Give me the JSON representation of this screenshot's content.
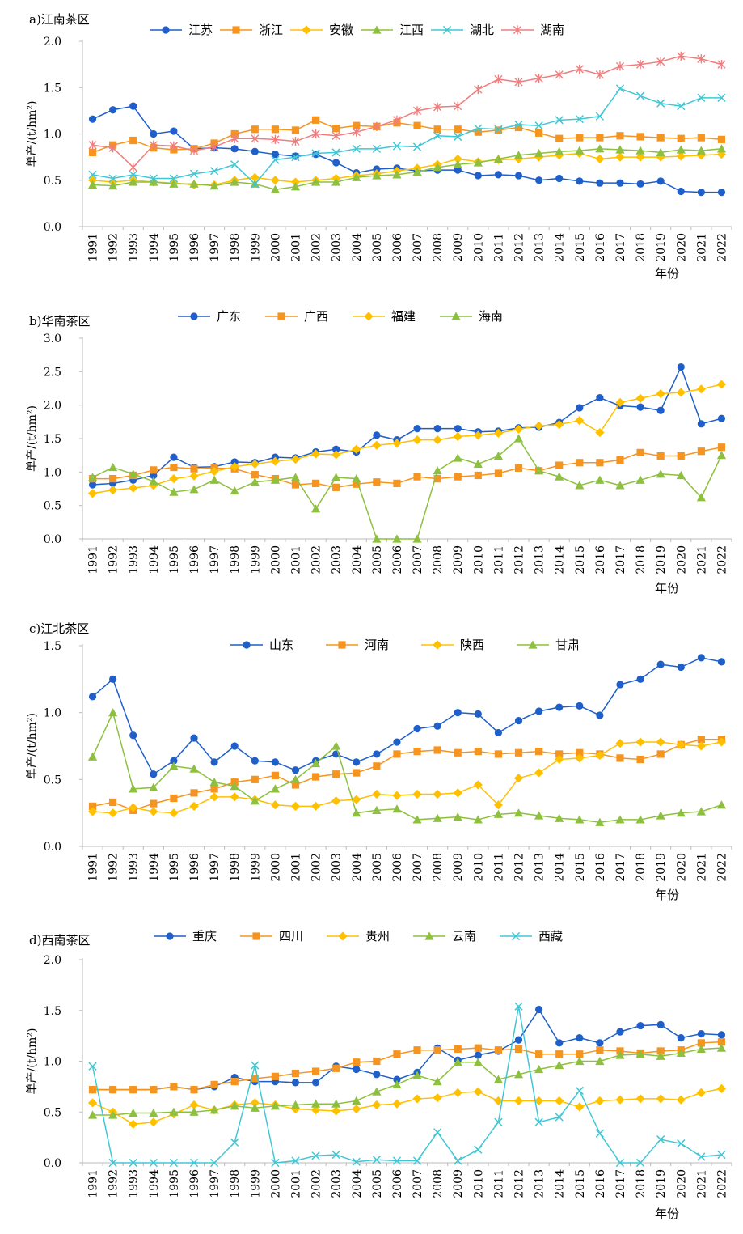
{
  "chart_data": [
    {
      "type": "line",
      "title": "a)江南茶区",
      "ylabel": "单产/(t/hm²)",
      "xlabel": "年份",
      "ylim": [
        0,
        2.0
      ],
      "yticks": [
        "0.0",
        "0.5",
        "1.0",
        "1.5",
        "2.0"
      ],
      "legend_position": "top",
      "x": [
        "1991",
        "1992",
        "1993",
        "1994",
        "1995",
        "1996",
        "1997",
        "1998",
        "1999",
        "2000",
        "2001",
        "2002",
        "2003",
        "2004",
        "2005",
        "2006",
        "2007",
        "2008",
        "2009",
        "2010",
        "2011",
        "2012",
        "2013",
        "2014",
        "2015",
        "2016",
        "2017",
        "2018",
        "2019",
        "2020",
        "2021",
        "2022"
      ],
      "series": [
        {
          "name": "江苏",
          "color": "#1f5fc9",
          "marker": "circle",
          "values": [
            1.16,
            1.26,
            1.3,
            1.0,
            1.03,
            0.84,
            0.85,
            0.84,
            0.81,
            0.78,
            0.76,
            0.78,
            0.69,
            0.58,
            0.62,
            0.63,
            0.6,
            0.61,
            0.61,
            0.55,
            0.56,
            0.55,
            0.5,
            0.52,
            0.49,
            0.47,
            0.47,
            0.46,
            0.49,
            0.38,
            0.37,
            0.37
          ]
        },
        {
          "name": "浙江",
          "color": "#f5951f",
          "marker": "square",
          "values": [
            0.8,
            0.88,
            0.93,
            0.85,
            0.83,
            0.84,
            0.9,
            1.0,
            1.05,
            1.05,
            1.04,
            1.15,
            1.06,
            1.09,
            1.08,
            1.12,
            1.09,
            1.05,
            1.05,
            1.02,
            1.04,
            1.07,
            1.01,
            0.95,
            0.96,
            0.96,
            0.98,
            0.97,
            0.96,
            0.95,
            0.96,
            0.94
          ]
        },
        {
          "name": "安徽",
          "color": "#ffc000",
          "marker": "diamond",
          "values": [
            0.5,
            0.48,
            0.5,
            0.48,
            0.47,
            0.45,
            0.45,
            0.5,
            0.53,
            0.5,
            0.48,
            0.5,
            0.52,
            0.55,
            0.57,
            0.6,
            0.63,
            0.67,
            0.73,
            0.7,
            0.72,
            0.73,
            0.75,
            0.77,
            0.79,
            0.73,
            0.75,
            0.75,
            0.75,
            0.76,
            0.77,
            0.78
          ]
        },
        {
          "name": "江西",
          "color": "#8dc03f",
          "marker": "triangle",
          "values": [
            0.45,
            0.44,
            0.48,
            0.48,
            0.46,
            0.46,
            0.44,
            0.48,
            0.46,
            0.4,
            0.43,
            0.48,
            0.48,
            0.53,
            0.55,
            0.56,
            0.59,
            0.64,
            0.67,
            0.69,
            0.73,
            0.77,
            0.79,
            0.81,
            0.82,
            0.84,
            0.83,
            0.82,
            0.8,
            0.83,
            0.82,
            0.84
          ]
        },
        {
          "name": "湖北",
          "color": "#41c7d4",
          "marker": "x",
          "values": [
            0.56,
            0.52,
            0.56,
            0.52,
            0.52,
            0.57,
            0.6,
            0.67,
            0.46,
            0.72,
            0.75,
            0.79,
            0.8,
            0.84,
            0.84,
            0.87,
            0.86,
            0.98,
            0.97,
            1.06,
            1.05,
            1.1,
            1.09,
            1.15,
            1.16,
            1.19,
            1.49,
            1.41,
            1.33,
            1.3,
            1.39,
            1.39
          ]
        },
        {
          "name": "湖南",
          "color": "#f07d7d",
          "marker": "star",
          "values": [
            0.88,
            0.85,
            0.64,
            0.88,
            0.87,
            0.82,
            0.86,
            0.95,
            0.95,
            0.94,
            0.92,
            1.0,
            0.98,
            1.02,
            1.08,
            1.15,
            1.25,
            1.29,
            1.3,
            1.48,
            1.59,
            1.56,
            1.6,
            1.64,
            1.7,
            1.64,
            1.73,
            1.75,
            1.78,
            1.84,
            1.81,
            1.75
          ]
        }
      ]
    },
    {
      "type": "line",
      "title": "b)华南茶区",
      "ylabel": "单产/(t/hm²)",
      "xlabel": "年份",
      "ylim": [
        0,
        3.0
      ],
      "yticks": [
        "0.0",
        "0.5",
        "1.0",
        "1.5",
        "2.0",
        "2.5",
        "3.0"
      ],
      "legend_position": "top",
      "x": [
        "1991",
        "1992",
        "1993",
        "1994",
        "1995",
        "1996",
        "1997",
        "1998",
        "1999",
        "2000",
        "2001",
        "2002",
        "2003",
        "2004",
        "2005",
        "2006",
        "2007",
        "2008",
        "2009",
        "2010",
        "2011",
        "2012",
        "2013",
        "2014",
        "2015",
        "2016",
        "2017",
        "2018",
        "2019",
        "2020",
        "2021",
        "2022"
      ],
      "series": [
        {
          "name": "广东",
          "color": "#1f5fc9",
          "marker": "circle",
          "values": [
            0.81,
            0.83,
            0.88,
            0.95,
            1.22,
            1.07,
            1.08,
            1.15,
            1.14,
            1.22,
            1.21,
            1.3,
            1.34,
            1.3,
            1.55,
            1.48,
            1.65,
            1.65,
            1.65,
            1.6,
            1.61,
            1.66,
            1.67,
            1.74,
            1.96,
            2.11,
            1.99,
            1.97,
            1.92,
            2.57,
            1.72,
            1.8
          ]
        },
        {
          "name": "广西",
          "color": "#f5951f",
          "marker": "square",
          "values": [
            0.9,
            0.9,
            0.95,
            1.03,
            1.07,
            1.05,
            1.06,
            1.05,
            0.96,
            0.9,
            0.81,
            0.83,
            0.77,
            0.82,
            0.85,
            0.83,
            0.93,
            0.9,
            0.93,
            0.95,
            0.98,
            1.06,
            1.02,
            1.1,
            1.14,
            1.14,
            1.18,
            1.29,
            1.24,
            1.24,
            1.31,
            1.37
          ]
        },
        {
          "name": "福建",
          "color": "#ffc000",
          "marker": "diamond",
          "values": [
            0.68,
            0.73,
            0.76,
            0.8,
            0.9,
            0.94,
            1.01,
            1.08,
            1.12,
            1.16,
            1.19,
            1.27,
            1.26,
            1.34,
            1.4,
            1.43,
            1.48,
            1.48,
            1.53,
            1.55,
            1.58,
            1.64,
            1.69,
            1.71,
            1.77,
            1.59,
            2.04,
            2.1,
            2.17,
            2.19,
            2.24,
            2.31
          ]
        },
        {
          "name": "海南",
          "color": "#8dc03f",
          "marker": "triangle",
          "values": [
            0.92,
            1.07,
            0.97,
            0.86,
            0.7,
            0.74,
            0.88,
            0.72,
            0.85,
            0.88,
            0.92,
            0.45,
            0.92,
            0.9,
            0.0,
            0.0,
            0.0,
            1.02,
            1.21,
            1.12,
            1.24,
            1.5,
            1.02,
            0.93,
            0.8,
            0.88,
            0.8,
            0.88,
            0.97,
            0.95,
            0.62,
            1.25
          ]
        }
      ]
    },
    {
      "type": "line",
      "title": "c)江北茶区",
      "ylabel": "单产/(t/hm²)",
      "xlabel": "年份",
      "ylim": [
        0,
        1.5
      ],
      "yticks": [
        "0.0",
        "0.5",
        "1.0",
        "1.5"
      ],
      "legend_position": "top",
      "x": [
        "1991",
        "1992",
        "1993",
        "1994",
        "1995",
        "1996",
        "1997",
        "1998",
        "1999",
        "2000",
        "2001",
        "2002",
        "2003",
        "2004",
        "2005",
        "2006",
        "2007",
        "2008",
        "2009",
        "2010",
        "2011",
        "2012",
        "2013",
        "2014",
        "2015",
        "2016",
        "2017",
        "2018",
        "2019",
        "2020",
        "2021",
        "2022"
      ],
      "series": [
        {
          "name": "山东",
          "color": "#1f5fc9",
          "marker": "circle",
          "values": [
            1.12,
            1.25,
            0.83,
            0.54,
            0.64,
            0.81,
            0.63,
            0.75,
            0.64,
            0.63,
            0.57,
            0.64,
            0.69,
            0.63,
            0.69,
            0.78,
            0.88,
            0.9,
            1.0,
            0.99,
            0.85,
            0.94,
            1.01,
            1.04,
            1.05,
            0.98,
            1.21,
            1.25,
            1.36,
            1.34,
            1.41,
            1.38
          ]
        },
        {
          "name": "河南",
          "color": "#f5951f",
          "marker": "square",
          "values": [
            0.3,
            0.33,
            0.27,
            0.32,
            0.36,
            0.4,
            0.43,
            0.48,
            0.5,
            0.53,
            0.46,
            0.52,
            0.54,
            0.55,
            0.6,
            0.69,
            0.71,
            0.72,
            0.7,
            0.71,
            0.69,
            0.7,
            0.71,
            0.69,
            0.7,
            0.69,
            0.66,
            0.65,
            0.69,
            0.76,
            0.8,
            0.8
          ]
        },
        {
          "name": "陕西",
          "color": "#ffc000",
          "marker": "diamond",
          "values": [
            0.26,
            0.25,
            0.29,
            0.26,
            0.25,
            0.3,
            0.37,
            0.37,
            0.35,
            0.31,
            0.3,
            0.3,
            0.34,
            0.35,
            0.39,
            0.38,
            0.39,
            0.39,
            0.4,
            0.46,
            0.31,
            0.51,
            0.55,
            0.65,
            0.66,
            0.68,
            0.77,
            0.78,
            0.78,
            0.76,
            0.75,
            0.78
          ]
        },
        {
          "name": "甘肃",
          "color": "#8dc03f",
          "marker": "triangle",
          "values": [
            0.67,
            1.0,
            0.43,
            0.44,
            0.6,
            0.58,
            0.48,
            0.45,
            0.34,
            0.43,
            0.5,
            0.62,
            0.75,
            0.25,
            0.27,
            0.28,
            0.2,
            0.21,
            0.22,
            0.2,
            0.24,
            0.25,
            0.23,
            0.21,
            0.2,
            0.18,
            0.2,
            0.2,
            0.23,
            0.25,
            0.26,
            0.31
          ]
        }
      ]
    },
    {
      "type": "line",
      "title": "d)西南茶区",
      "ylabel": "单产/(t/hm²)",
      "xlabel": "年份",
      "ylim": [
        0,
        2.0
      ],
      "yticks": [
        "0.0",
        "0.5",
        "1.0",
        "1.5",
        "2.0"
      ],
      "legend_position": "top",
      "x": [
        "1991",
        "1992",
        "1993",
        "1994",
        "1995",
        "1996",
        "1997",
        "1998",
        "1999",
        "2000",
        "2001",
        "2002",
        "2003",
        "2004",
        "2005",
        "2006",
        "2007",
        "2008",
        "2009",
        "2010",
        "2011",
        "2012",
        "2013",
        "2014",
        "2015",
        "2016",
        "2017",
        "2018",
        "2019",
        "2020",
        "2021",
        "2022"
      ],
      "series": [
        {
          "name": "重庆",
          "color": "#1f5fc9",
          "marker": "circle",
          "values": [
            0.72,
            0.72,
            0.72,
            0.72,
            0.75,
            0.72,
            0.75,
            0.84,
            0.8,
            0.8,
            0.79,
            0.79,
            0.95,
            0.92,
            0.87,
            0.82,
            0.89,
            1.13,
            1.01,
            1.06,
            1.1,
            1.21,
            1.51,
            1.18,
            1.23,
            1.18,
            1.29,
            1.35,
            1.36,
            1.23,
            1.27,
            1.26
          ]
        },
        {
          "name": "四川",
          "color": "#f5951f",
          "marker": "square",
          "values": [
            0.72,
            0.72,
            0.72,
            0.72,
            0.75,
            0.72,
            0.77,
            0.8,
            0.83,
            0.85,
            0.88,
            0.9,
            0.93,
            0.99,
            1.0,
            1.07,
            1.11,
            1.11,
            1.12,
            1.13,
            1.11,
            1.12,
            1.07,
            1.07,
            1.07,
            1.11,
            1.1,
            1.08,
            1.1,
            1.11,
            1.18,
            1.19
          ]
        },
        {
          "name": "贵州",
          "color": "#ffc000",
          "marker": "diamond",
          "values": [
            0.59,
            0.5,
            0.38,
            0.4,
            0.48,
            0.57,
            0.52,
            0.57,
            0.59,
            0.57,
            0.53,
            0.52,
            0.51,
            0.53,
            0.57,
            0.58,
            0.63,
            0.64,
            0.69,
            0.7,
            0.61,
            0.61,
            0.61,
            0.61,
            0.55,
            0.61,
            0.62,
            0.63,
            0.63,
            0.62,
            0.69,
            0.73
          ]
        },
        {
          "name": "云南",
          "color": "#8dc03f",
          "marker": "triangle",
          "values": [
            0.47,
            0.47,
            0.49,
            0.49,
            0.5,
            0.5,
            0.52,
            0.56,
            0.54,
            0.56,
            0.57,
            0.58,
            0.58,
            0.61,
            0.7,
            0.77,
            0.86,
            0.8,
            0.99,
            0.99,
            0.82,
            0.87,
            0.92,
            0.96,
            1.0,
            1.0,
            1.06,
            1.07,
            1.05,
            1.08,
            1.12,
            1.13
          ]
        },
        {
          "name": "西藏",
          "color": "#41c7d4",
          "marker": "x",
          "values": [
            0.95,
            0.0,
            0.0,
            0.0,
            0.0,
            0.0,
            0.0,
            0.2,
            0.96,
            0.0,
            0.02,
            0.07,
            0.08,
            0.01,
            0.03,
            0.02,
            0.02,
            0.3,
            0.02,
            0.13,
            0.4,
            1.54,
            0.4,
            0.45,
            0.71,
            0.29,
            0.0,
            0.0,
            0.23,
            0.19,
            0.06,
            0.08
          ]
        }
      ]
    }
  ]
}
